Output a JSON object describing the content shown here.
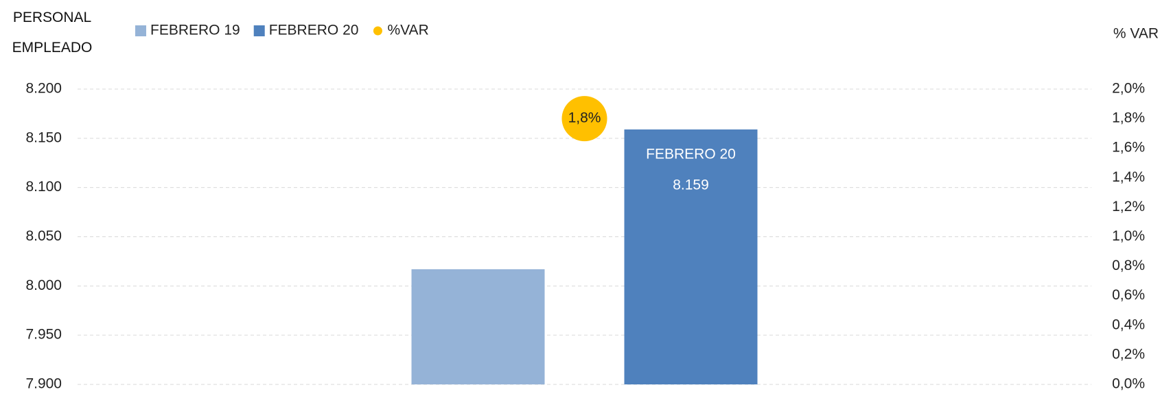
{
  "chart_data": {
    "type": "bar",
    "ylabel": "PERSONAL EMPLEADO",
    "y2label": "% VAR",
    "categories": [
      null
    ],
    "series": [
      {
        "name": "FEBRERO 19",
        "color": "#95b3d7",
        "values": [
          8017
        ]
      },
      {
        "name": "FEBRERO 20",
        "color": "#4f81bd",
        "values": [
          8159
        ],
        "value_labels": [
          "8.159"
        ]
      },
      {
        "name": "%VAR",
        "color": "#ffc000",
        "axis": "y2",
        "values": [
          1.8
        ],
        "value_labels": [
          "1,8%"
        ]
      }
    ],
    "ylim": [
      7900,
      8200
    ],
    "yticks": [
      {
        "value": 7900,
        "label": "7.900"
      },
      {
        "value": 7950,
        "label": "7.950"
      },
      {
        "value": 8000,
        "label": "8.000"
      },
      {
        "value": 8050,
        "label": "8.050"
      },
      {
        "value": 8100,
        "label": "8.100"
      },
      {
        "value": 8150,
        "label": "8.150"
      },
      {
        "value": 8200,
        "label": "8.200"
      }
    ],
    "y2lim": [
      0,
      2
    ],
    "y2ticks": [
      {
        "value": 0,
        "label": "0,0%"
      },
      {
        "value": 0.2,
        "label": "0,2%"
      },
      {
        "value": 0.4,
        "label": "0,4%"
      },
      {
        "value": 0.6,
        "label": "0,6%"
      },
      {
        "value": 0.8,
        "label": "0,8%"
      },
      {
        "value": 1,
        "label": "1,0%"
      },
      {
        "value": 1.2,
        "label": "1,2%"
      },
      {
        "value": 1.4,
        "label": "1,4%"
      },
      {
        "value": 1.6,
        "label": "1,6%"
      },
      {
        "value": 1.8,
        "label": "1,8%"
      },
      {
        "value": 2,
        "label": "2,0%"
      }
    ],
    "grid": true
  }
}
